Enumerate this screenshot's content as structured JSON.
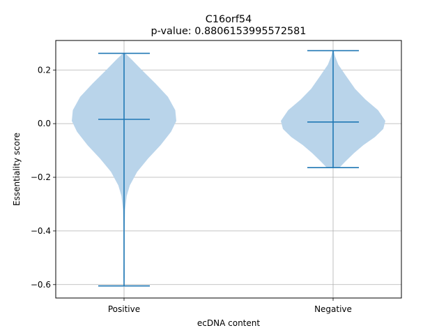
{
  "chart_data": {
    "type": "violin",
    "title": "C16orf54",
    "subtitle": "p-value: 0.8806153995572581",
    "xlabel": "ecDNA content",
    "ylabel": "Essentiality score",
    "categories": [
      "Positive",
      "Negative"
    ],
    "ylim": [
      -0.65,
      0.31
    ],
    "yticks": [
      -0.6,
      -0.4,
      -0.2,
      0.0,
      0.2
    ],
    "ytick_labels": [
      "−0.6",
      "−0.4",
      "−0.2",
      "0.0",
      "0.2"
    ],
    "grid": true,
    "colors": {
      "body": "#b9d4ea",
      "line": "#1f77b4"
    },
    "violins": [
      {
        "name": "Positive",
        "min": -0.605,
        "max": 0.262,
        "median": 0.016,
        "density": [
          [
            0.262,
            0.02
          ],
          [
            0.24,
            0.14
          ],
          [
            0.2,
            0.34
          ],
          [
            0.15,
            0.6
          ],
          [
            0.1,
            0.84
          ],
          [
            0.05,
            0.98
          ],
          [
            0.01,
            1.0
          ],
          [
            -0.03,
            0.9
          ],
          [
            -0.08,
            0.7
          ],
          [
            -0.13,
            0.46
          ],
          [
            -0.18,
            0.25
          ],
          [
            -0.23,
            0.11
          ],
          [
            -0.27,
            0.05
          ],
          [
            -0.32,
            0.02
          ],
          [
            -0.4,
            0.012
          ],
          [
            -0.5,
            0.01
          ],
          [
            -0.57,
            0.012
          ],
          [
            -0.605,
            0.004
          ]
        ]
      },
      {
        "name": "Negative",
        "min": -0.164,
        "max": 0.272,
        "median": 0.006,
        "density": [
          [
            0.272,
            0.01
          ],
          [
            0.25,
            0.04
          ],
          [
            0.22,
            0.1
          ],
          [
            0.18,
            0.24
          ],
          [
            0.13,
            0.42
          ],
          [
            0.09,
            0.62
          ],
          [
            0.05,
            0.86
          ],
          [
            0.01,
            1.0
          ],
          [
            -0.02,
            0.96
          ],
          [
            -0.05,
            0.8
          ],
          [
            -0.08,
            0.58
          ],
          [
            -0.11,
            0.4
          ],
          [
            -0.14,
            0.24
          ],
          [
            -0.164,
            0.12
          ]
        ]
      }
    ]
  }
}
